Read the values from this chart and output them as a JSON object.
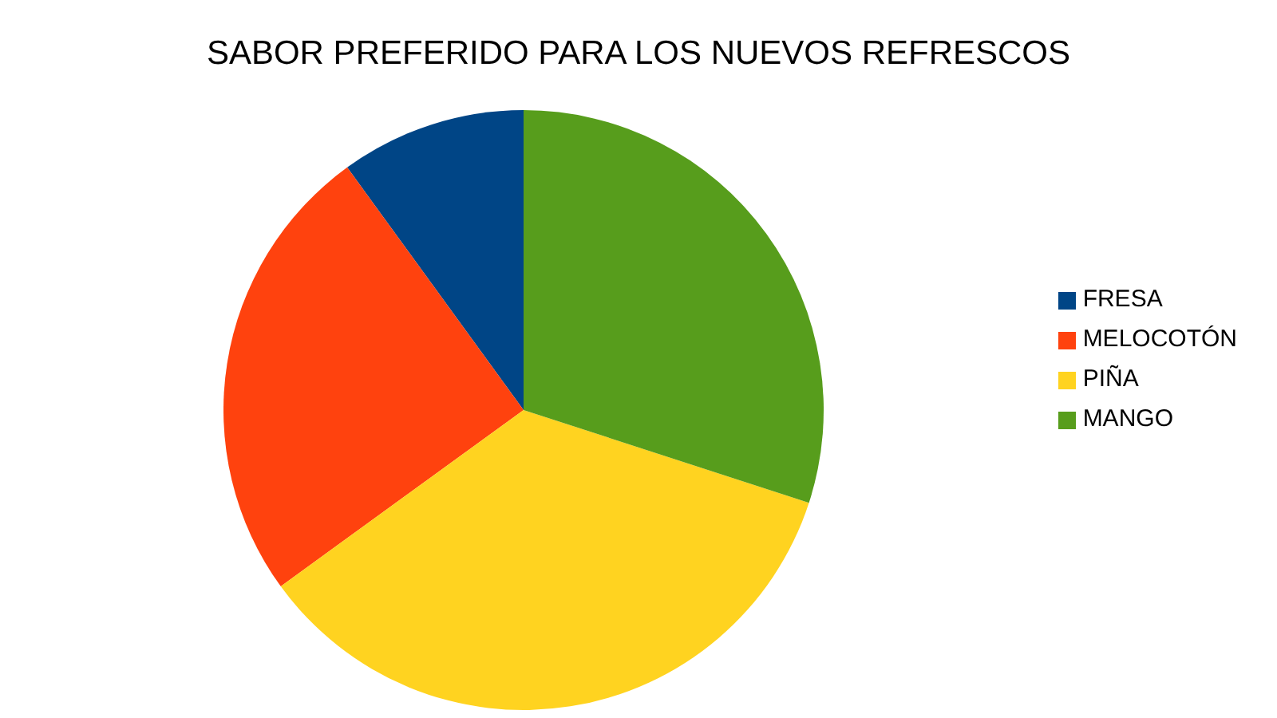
{
  "chart_data": {
    "type": "pie",
    "title": "SABOR PREFERIDO PARA LOS NUEVOS REFRESCOS",
    "categories": [
      "FRESA",
      "MELOCOTÓN",
      "PIÑA",
      "MANGO"
    ],
    "values": [
      10,
      25,
      35,
      30
    ],
    "colors": [
      "#004586",
      "#ff420e",
      "#ffd320",
      "#579d1c"
    ],
    "legend": "right"
  }
}
